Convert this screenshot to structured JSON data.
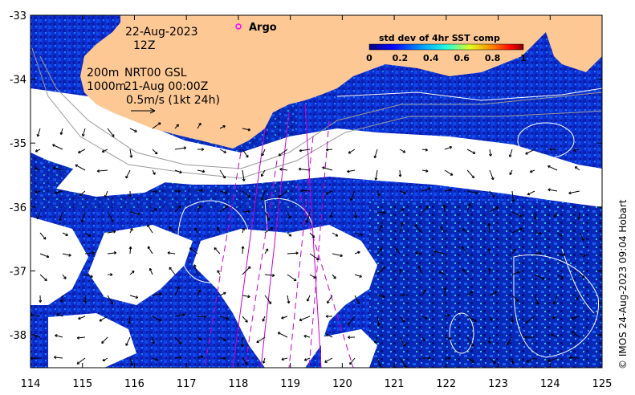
{
  "map": {
    "date": "22-Aug-2023",
    "hour": "12Z",
    "legend_argo": "Argo",
    "isobath_200": "200m",
    "isobath_1000": "1000m",
    "nrt_label": "NRT00 GSL",
    "nrt_time": "21-Aug 00:00Z",
    "vector_scale": "0.5m/s (1kt 24h)",
    "credit": "© IMOS 24-Aug-2023 09:04 Hobart",
    "colorbar_title": "std dev of 4hr SST comp",
    "colorbar_ticks": [
      "0",
      "0.2",
      "0.4",
      "0.6",
      "0.8",
      "1"
    ],
    "x_ticks": [
      "114",
      "115",
      "116",
      "117",
      "118",
      "119",
      "120",
      "121",
      "122",
      "123",
      "124",
      "125"
    ],
    "y_ticks": [
      "-33",
      "-34",
      "-35",
      "-36",
      "-37",
      "-38"
    ],
    "colors": {
      "land": "#fdc894",
      "cloud": "#ffffff",
      "argo_marker": "#ff00ff",
      "track": "#cc00cc",
      "sst_low": "#00007f",
      "sst_mid": "#0060ff",
      "sst_high": "#7f0000"
    }
  }
}
